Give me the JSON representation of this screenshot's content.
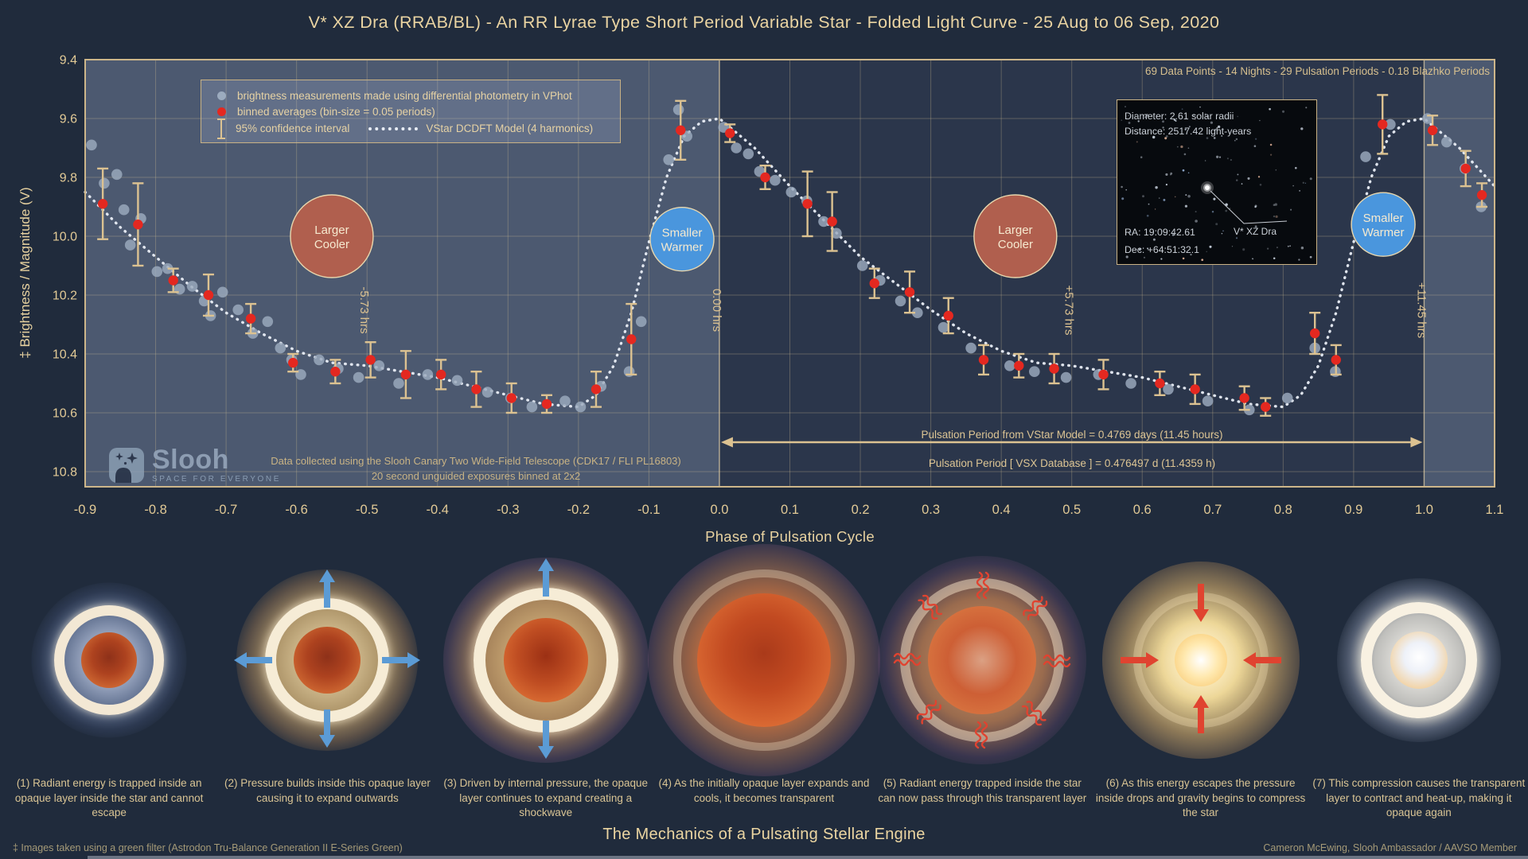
{
  "title": "V* XZ Dra (RRAB/BL) - An RR Lyrae Type Short Period Variable Star - Folded Light Curve - 25 Aug to 06 Sep, 2020",
  "stats_line": "69 Data Points - 14 Nights - 29 Pulsation Periods - 0.18 Blazhko Periods",
  "legend": {
    "scatter": "brightness measurements made using differential photometry in VPhot",
    "binned": "binned averages (bin-size = 0.05 periods)",
    "ci": "95% confidence interval",
    "model": "VStar DCDFT Model (4 harmonics)"
  },
  "inset": {
    "diameter": "Diameter: 2.61 solar radii",
    "distance": "Distance: 2517.42 light-years",
    "ra": "RA: 19:09:42.61",
    "dec": "Dec: +64:51:32.1",
    "star_label": "V* XZ Dra"
  },
  "slooh": {
    "name": "Slooh",
    "tagline": "SPACE FOR EVERYONE"
  },
  "chart_notes": {
    "telescope_line1": "Data collected using the Slooh Canary Two Wide-Field Telescope (CDK17 / FLI PL16803)",
    "telescope_line2": "20 second unguided exposures binned at 2x2",
    "period_model": "Pulsation Period from VStar Model = 0.4769 days (11.45 hours)",
    "period_vsx": "Pulsation Period [ VSX Database ] = 0.476497 d  (11.4359 h)"
  },
  "axes": {
    "x_label": "Phase of Pulsation Cycle",
    "y_label": "‡ Brightness / Magnitude (V)"
  },
  "chart_data": {
    "type": "scatter",
    "title": "V* XZ Dra folded light curve",
    "xlabel": "Phase of Pulsation Cycle",
    "ylabel": "‡ Brightness / Magnitude (V)",
    "xlim": [
      -0.9,
      1.1
    ],
    "ylim": [
      10.8,
      9.4
    ],
    "y_axis_inverted": true,
    "grid": true,
    "x_ticks": [
      "-0.9",
      "-0.8",
      "-0.7",
      "-0.6",
      "-0.5",
      "-0.4",
      "-0.3",
      "-0.2",
      "-0.1",
      "0.0",
      "0.1",
      "0.2",
      "0.3",
      "0.4",
      "0.5",
      "0.6",
      "0.7",
      "0.8",
      "0.9",
      "1.0",
      "1.1"
    ],
    "y_ticks": [
      "9.4",
      "9.6",
      "9.8",
      "10.0",
      "10.2",
      "10.4",
      "10.6",
      "10.8"
    ],
    "highlight_bands": [
      [
        -0.9,
        0.0
      ],
      [
        1.0,
        1.1
      ]
    ],
    "phase_lines": [
      0.0,
      1.0
    ],
    "period_arrow": {
      "from": 0.0,
      "to": 1.0,
      "mag": 10.7
    },
    "annotations": {
      "hour_labels": [
        {
          "phase": -0.5,
          "label": "-5.73 hrs"
        },
        {
          "phase": 0.0,
          "label": "0.00 hrs"
        },
        {
          "phase": 0.5,
          "label": "+5.73 hrs"
        },
        {
          "phase": 1.0,
          "label": "+11.45 hrs"
        }
      ],
      "state_circles": [
        {
          "phase": -0.55,
          "mag": 10.0,
          "r": 52,
          "type": "cooler",
          "line1": "Larger",
          "line2": "Cooler"
        },
        {
          "phase": -0.053,
          "mag": 10.01,
          "r": 40,
          "type": "warmer",
          "line1": "Smaller",
          "line2": "Warmer"
        },
        {
          "phase": 0.42,
          "mag": 10.0,
          "r": 52,
          "type": "cooler",
          "line1": "Larger",
          "line2": "Cooler"
        },
        {
          "phase": 0.942,
          "mag": 9.96,
          "r": 40,
          "type": "warmer",
          "line1": "Smaller",
          "line2": "Warmer"
        }
      ],
      "colors": {
        "cooler": "#b05f4e",
        "warmer": "#4a96dd"
      }
    },
    "series": [
      {
        "name": "brightness measurements (VPhot differential photometry)",
        "type": "scatter",
        "color": "#9cabbe",
        "points": [
          [
            -0.891,
            9.69
          ],
          [
            -0.873,
            9.82
          ],
          [
            -0.855,
            9.79
          ],
          [
            -0.845,
            9.91
          ],
          [
            -0.836,
            10.03
          ],
          [
            -0.821,
            9.94
          ],
          [
            -0.798,
            10.12
          ],
          [
            -0.783,
            10.11
          ],
          [
            -0.766,
            10.18
          ],
          [
            -0.748,
            10.17
          ],
          [
            -0.731,
            10.22
          ],
          [
            -0.722,
            10.27
          ],
          [
            -0.705,
            10.19
          ],
          [
            -0.683,
            10.25
          ],
          [
            -0.662,
            10.33
          ],
          [
            -0.641,
            10.29
          ],
          [
            -0.623,
            10.38
          ],
          [
            -0.607,
            10.42
          ],
          [
            -0.594,
            10.47
          ],
          [
            -0.568,
            10.42
          ],
          [
            -0.541,
            10.45
          ],
          [
            -0.512,
            10.48
          ],
          [
            -0.483,
            10.44
          ],
          [
            -0.455,
            10.5
          ],
          [
            -0.414,
            10.47
          ],
          [
            -0.372,
            10.49
          ],
          [
            -0.329,
            10.53
          ],
          [
            -0.296,
            10.55
          ],
          [
            -0.266,
            10.58
          ],
          [
            -0.219,
            10.56
          ],
          [
            -0.197,
            10.58
          ],
          [
            -0.168,
            10.51
          ],
          [
            -0.128,
            10.46
          ],
          [
            -0.111,
            10.29
          ],
          [
            -0.072,
            9.74
          ],
          [
            -0.058,
            9.57
          ],
          [
            -0.046,
            9.66
          ],
          [
            0.006,
            9.63
          ],
          [
            0.024,
            9.7
          ],
          [
            0.041,
            9.72
          ],
          [
            0.057,
            9.78
          ],
          [
            0.079,
            9.81
          ],
          [
            0.102,
            9.85
          ],
          [
            0.124,
            9.88
          ],
          [
            0.148,
            9.95
          ],
          [
            0.166,
            9.99
          ],
          [
            0.203,
            10.1
          ],
          [
            0.228,
            10.15
          ],
          [
            0.257,
            10.22
          ],
          [
            0.281,
            10.26
          ],
          [
            0.318,
            10.31
          ],
          [
            0.357,
            10.38
          ],
          [
            0.412,
            10.44
          ],
          [
            0.447,
            10.46
          ],
          [
            0.492,
            10.48
          ],
          [
            0.538,
            10.47
          ],
          [
            0.584,
            10.5
          ],
          [
            0.637,
            10.52
          ],
          [
            0.693,
            10.56
          ],
          [
            0.752,
            10.59
          ],
          [
            0.806,
            10.55
          ],
          [
            0.845,
            10.38
          ],
          [
            0.874,
            10.46
          ],
          [
            0.917,
            9.73
          ],
          [
            0.952,
            9.62
          ],
          [
            1.005,
            9.6
          ],
          [
            1.032,
            9.68
          ],
          [
            1.058,
            9.77
          ],
          [
            1.081,
            9.9
          ]
        ]
      },
      {
        "name": "binned averages (bin-size = 0.05 periods) with 95% CI",
        "type": "scatter_ci",
        "color": "#e42820",
        "ci_color": "#dcc291",
        "points": [
          [
            -0.875,
            9.89,
            0.12
          ],
          [
            -0.825,
            9.96,
            0.14
          ],
          [
            -0.775,
            10.15,
            0.04
          ],
          [
            -0.725,
            10.2,
            0.07
          ],
          [
            -0.665,
            10.28,
            0.05
          ],
          [
            -0.605,
            10.43,
            0.03
          ],
          [
            -0.545,
            10.46,
            0.04
          ],
          [
            -0.495,
            10.42,
            0.06
          ],
          [
            -0.445,
            10.47,
            0.08
          ],
          [
            -0.395,
            10.47,
            0.05
          ],
          [
            -0.345,
            10.52,
            0.06
          ],
          [
            -0.295,
            10.55,
            0.05
          ],
          [
            -0.245,
            10.57,
            0.03
          ],
          [
            -0.175,
            10.52,
            0.06
          ],
          [
            -0.125,
            10.35,
            0.12
          ],
          [
            -0.055,
            9.64,
            0.1
          ],
          [
            0.015,
            9.65,
            0.03
          ],
          [
            0.065,
            9.8,
            0.04
          ],
          [
            0.125,
            9.89,
            0.11
          ],
          [
            0.16,
            9.95,
            0.1
          ],
          [
            0.22,
            10.16,
            0.05
          ],
          [
            0.27,
            10.19,
            0.07
          ],
          [
            0.325,
            10.27,
            0.06
          ],
          [
            0.375,
            10.42,
            0.05
          ],
          [
            0.425,
            10.44,
            0.04
          ],
          [
            0.475,
            10.45,
            0.05
          ],
          [
            0.545,
            10.47,
            0.05
          ],
          [
            0.625,
            10.5,
            0.04
          ],
          [
            0.675,
            10.52,
            0.05
          ],
          [
            0.745,
            10.55,
            0.04
          ],
          [
            0.775,
            10.58,
            0.03
          ],
          [
            0.845,
            10.33,
            0.07
          ],
          [
            0.875,
            10.42,
            0.05
          ],
          [
            0.941,
            9.62,
            0.1
          ],
          [
            1.012,
            9.64,
            0.05
          ],
          [
            1.059,
            9.77,
            0.06
          ],
          [
            1.082,
            9.86,
            0.04
          ]
        ]
      },
      {
        "name": "VStar DCDFT Model (4 harmonics)",
        "type": "dotted_line",
        "color": "#e9eef6",
        "points": [
          [
            -0.9,
            9.85
          ],
          [
            -0.85,
            9.97
          ],
          [
            -0.8,
            10.07
          ],
          [
            -0.75,
            10.17
          ],
          [
            -0.7,
            10.26
          ],
          [
            -0.65,
            10.33
          ],
          [
            -0.6,
            10.39
          ],
          [
            -0.55,
            10.43
          ],
          [
            -0.5,
            10.44
          ],
          [
            -0.45,
            10.46
          ],
          [
            -0.4,
            10.48
          ],
          [
            -0.35,
            10.51
          ],
          [
            -0.3,
            10.54
          ],
          [
            -0.25,
            10.57
          ],
          [
            -0.2,
            10.58
          ],
          [
            -0.175,
            10.54
          ],
          [
            -0.15,
            10.44
          ],
          [
            -0.125,
            10.26
          ],
          [
            -0.1,
            10.02
          ],
          [
            -0.075,
            9.8
          ],
          [
            -0.05,
            9.66
          ],
          [
            -0.025,
            9.61
          ],
          [
            0.0,
            9.6
          ],
          [
            0.05,
            9.7
          ],
          [
            0.1,
            9.83
          ],
          [
            0.15,
            9.95
          ],
          [
            0.2,
            10.07
          ],
          [
            0.25,
            10.16
          ],
          [
            0.3,
            10.25
          ],
          [
            0.35,
            10.33
          ],
          [
            0.4,
            10.39
          ],
          [
            0.45,
            10.43
          ],
          [
            0.5,
            10.44
          ],
          [
            0.55,
            10.46
          ],
          [
            0.6,
            10.48
          ],
          [
            0.65,
            10.51
          ],
          [
            0.7,
            10.54
          ],
          [
            0.75,
            10.57
          ],
          [
            0.8,
            10.58
          ],
          [
            0.825,
            10.54
          ],
          [
            0.85,
            10.44
          ],
          [
            0.875,
            10.26
          ],
          [
            0.9,
            10.02
          ],
          [
            0.925,
            9.8
          ],
          [
            0.95,
            9.66
          ],
          [
            0.975,
            9.61
          ],
          [
            1.0,
            9.6
          ],
          [
            1.05,
            9.7
          ],
          [
            1.1,
            9.83
          ]
        ]
      }
    ]
  },
  "mechanics": {
    "heading": "The Mechanics of a Pulsating Stellar Engine",
    "footnote_left": "‡ Images taken using a green filter (Astrodon Tru-Balance Generation II E-Series Green)",
    "credit_right": "Cameron McEwing, Slooh Ambassador / AAVSO Member",
    "stages": [
      {
        "caption": "(1) Radiant energy is trapped inside an opaque layer inside the star and cannot escape"
      },
      {
        "caption": "(2) Pressure builds inside this opaque layer causing it to expand outwards"
      },
      {
        "caption": "(3) Driven by internal pressure, the opaque layer continues to expand creating a shockwave"
      },
      {
        "caption": "(4) As the initially opaque layer expands and cools, it becomes transparent"
      },
      {
        "caption": "(5) Radiant energy trapped inside the star can now pass through this transparent layer"
      },
      {
        "caption": "(6) As this energy escapes the pressure inside drops and gravity begins to compress the star"
      },
      {
        "caption": "(7) This compression causes the transparent layer to contract and heat-up, making it opaque again"
      }
    ]
  }
}
